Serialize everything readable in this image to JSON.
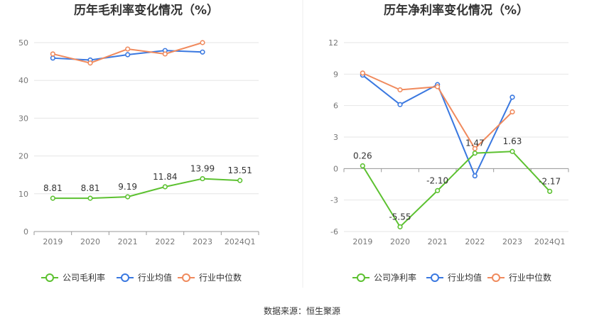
{
  "colors": {
    "company": "#5cc130",
    "industry_avg": "#3a78e0",
    "industry_median": "#f08a5d",
    "grid": "#e6e6e6",
    "axis": "#999999"
  },
  "source": "数据来源：恒生聚源",
  "chart_data": [
    {
      "type": "line",
      "title": "历年毛利率变化情况（%）",
      "categories": [
        "2019",
        "2020",
        "2021",
        "2022",
        "2023",
        "2024Q1"
      ],
      "ylim": [
        0,
        50
      ],
      "yticks": [
        0,
        10,
        20,
        30,
        40,
        50
      ],
      "grid": true,
      "legend_position": "bottom",
      "series": [
        {
          "name": "公司毛利率",
          "values": [
            8.81,
            8.81,
            9.19,
            11.84,
            13.99,
            13.51
          ],
          "labels": [
            "8.81",
            "8.81",
            "9.19",
            "11.84",
            "13.99",
            "13.51"
          ]
        },
        {
          "name": "行业均值",
          "values": [
            45.9,
            45.4,
            46.8,
            47.9,
            47.5,
            null
          ]
        },
        {
          "name": "行业中位数",
          "values": [
            47.0,
            44.6,
            48.3,
            47.0,
            50.0,
            null
          ]
        }
      ]
    },
    {
      "type": "line",
      "title": "历年净利率变化情况（%）",
      "categories": [
        "2019",
        "2020",
        "2021",
        "2022",
        "2023",
        "2024Q1"
      ],
      "ylim": [
        -6,
        12
      ],
      "yticks": [
        -6,
        -3,
        0,
        3,
        6,
        9,
        12
      ],
      "grid": true,
      "legend_position": "bottom",
      "series": [
        {
          "name": "公司净利率",
          "values": [
            0.26,
            -5.55,
            -2.1,
            1.47,
            1.63,
            -2.17
          ],
          "labels": [
            "0.26",
            "-5.55",
            "-2.10",
            "1.47",
            "1.63",
            "-2.17"
          ]
        },
        {
          "name": "行业均值",
          "values": [
            8.9,
            6.1,
            8.0,
            -0.7,
            6.8,
            null
          ]
        },
        {
          "name": "行业中位数",
          "values": [
            9.1,
            7.5,
            7.8,
            1.9,
            5.4,
            null
          ]
        }
      ]
    }
  ]
}
